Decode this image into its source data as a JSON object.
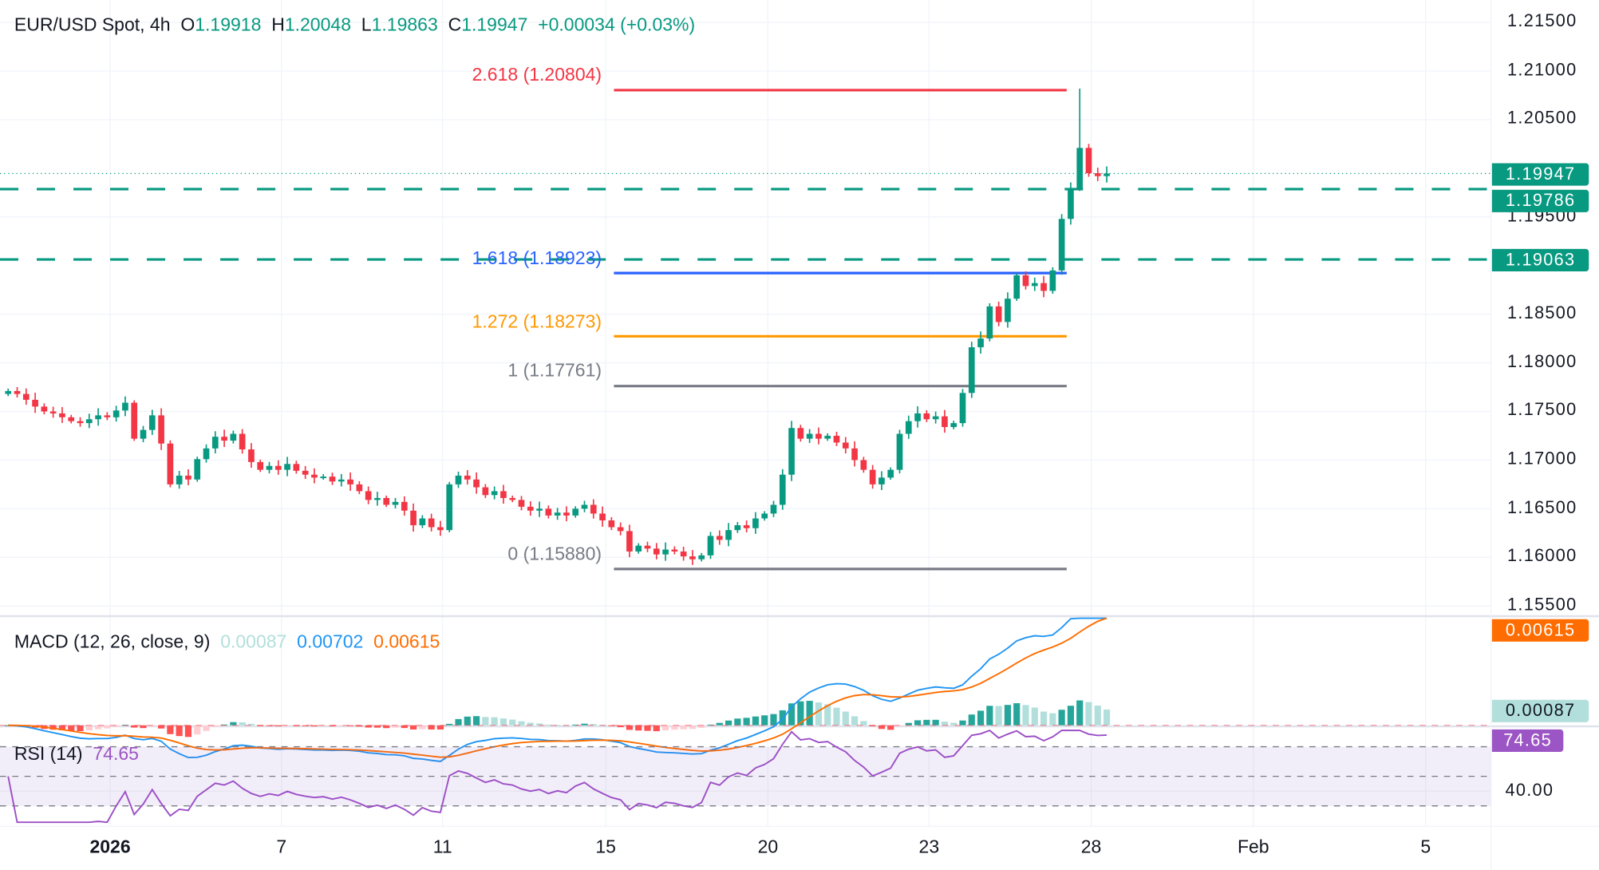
{
  "header": {
    "symbol": "EUR/USD Spot, 4h",
    "o_label": "O",
    "o": "1.19918",
    "h_label": "H",
    "h": "1.20048",
    "l_label": "L",
    "l": "1.19863",
    "c_label": "C",
    "c": "1.19947",
    "change": "+0.00034 (+0.03%)"
  },
  "price_axis": [
    "1.21500",
    "1.21000",
    "1.20500",
    "1.19500",
    "1.18500",
    "1.18000",
    "1.17500",
    "1.17000",
    "1.16500",
    "1.16000",
    "1.15500"
  ],
  "price_badges": {
    "last": "1.19947",
    "level1": "1.19786",
    "level2": "1.19063"
  },
  "fib_levels": [
    {
      "label": "2.618 (1.20804)",
      "price": 1.20804,
      "color": "#f23645"
    },
    {
      "label": "1.618 (1.18923)",
      "price": 1.18923,
      "color": "#2962ff"
    },
    {
      "label": "1.272 (1.18273)",
      "price": 1.18273,
      "color": "#ff9800"
    },
    {
      "label": "1 (1.17761)",
      "price": 1.17761,
      "color": "#787b86"
    },
    {
      "label": "0 (1.15880)",
      "price": 1.1588,
      "color": "#787b86"
    }
  ],
  "horizontal_levels": [
    1.19786,
    1.19063
  ],
  "macd": {
    "title": "MACD (12, 26, close, 9)",
    "hist": "0.00087",
    "macd": "0.00702",
    "signal": "0.00615",
    "badge_signal": "0.00615",
    "badge_hist": "0.00087"
  },
  "rsi": {
    "title": "RSI (14)",
    "value": "74.65",
    "badge": "74.65",
    "axis_label": "40.00"
  },
  "time_axis": [
    "2026",
    "7",
    "11",
    "15",
    "20",
    "23",
    "28",
    "Feb",
    "5"
  ],
  "colors": {
    "up": "#089981",
    "down": "#f23645",
    "macd_line": "#2196f3",
    "signal_line": "#ff6d00",
    "rsi_line": "#9c4fc6",
    "level_line": "#089981"
  },
  "chart_data": {
    "type": "candlestick",
    "interval": "4h",
    "closes": [
      1.1771,
      1.1768,
      1.1762,
      1.1755,
      1.175,
      1.1748,
      1.1744,
      1.174,
      1.1738,
      1.1742,
      1.1746,
      1.1744,
      1.1751,
      1.1759,
      1.1722,
      1.1731,
      1.1746,
      1.1717,
      1.1675,
      1.1684,
      1.168,
      1.1701,
      1.1712,
      1.1724,
      1.172,
      1.1727,
      1.1711,
      1.1698,
      1.169,
      1.1694,
      1.169,
      1.1696,
      1.1689,
      1.1685,
      1.1682,
      1.1683,
      1.1678,
      1.168,
      1.1675,
      1.1668,
      1.1659,
      1.1661,
      1.1654,
      1.1657,
      1.1648,
      1.1633,
      1.164,
      1.1631,
      1.1628,
      1.1675,
      1.1684,
      1.168,
      1.1672,
      1.1664,
      1.1668,
      1.1661,
      1.1659,
      1.1652,
      1.1648,
      1.165,
      1.1643,
      1.1646,
      1.1643,
      1.165,
      1.1654,
      1.1645,
      1.1638,
      1.1631,
      1.1627,
      1.1606,
      1.1612,
      1.1609,
      1.1603,
      1.1608,
      1.1606,
      1.1601,
      1.1598,
      1.1602,
      1.1622,
      1.1618,
      1.1628,
      1.1633,
      1.163,
      1.164,
      1.1645,
      1.1654,
      1.1685,
      1.1733,
      1.1722,
      1.1727,
      1.1722,
      1.1725,
      1.1718,
      1.1712,
      1.17,
      1.169,
      1.1675,
      1.1682,
      1.169,
      1.1727,
      1.174,
      1.1748,
      1.1742,
      1.1745,
      1.1734,
      1.1738,
      1.1769,
      1.1816,
      1.1825,
      1.1858,
      1.1842,
      1.1866,
      1.189,
      1.1879,
      1.1882,
      1.1874,
      1.1895,
      1.1948,
      1.1979,
      1.2021,
      1.1995,
      1.1992,
      1.19947
    ],
    "spike_high": 1.2082,
    "ylim": [
      1.155,
      1.215
    ],
    "y_ticks": [
      1.215,
      1.21,
      1.205,
      1.195,
      1.185,
      1.18,
      1.175,
      1.17,
      1.165,
      1.16,
      1.155
    ],
    "x_ticks": [
      "2026",
      "7",
      "11",
      "15",
      "20",
      "23",
      "28",
      "Feb",
      "5"
    ],
    "grid": true
  }
}
